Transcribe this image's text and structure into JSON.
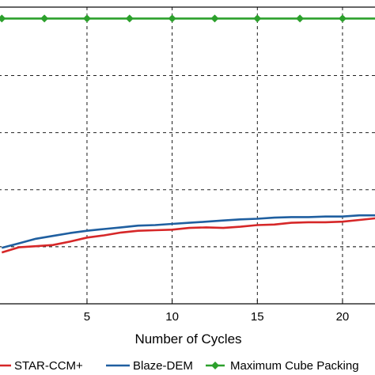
{
  "chart_data": {
    "type": "line",
    "xlabel": "Number of Cycles",
    "ylabel": "",
    "title": "",
    "xlim": [
      -0.2,
      22
    ],
    "ylim": [
      0.5,
      1.02
    ],
    "x_ticks": [
      5,
      10,
      15,
      20
    ],
    "grid": true,
    "legend_position": "bottom",
    "series": [
      {
        "name": "STAR-CCM+",
        "color": "#d62728",
        "marker": "none",
        "x": [
          0,
          1,
          2,
          3,
          4,
          5,
          6,
          7,
          8,
          9,
          10,
          11,
          12,
          13,
          14,
          15,
          16,
          17,
          18,
          19,
          20,
          21,
          22
        ],
        "y": [
          0.59,
          0.599,
          0.601,
          0.603,
          0.609,
          0.616,
          0.62,
          0.625,
          0.628,
          0.629,
          0.63,
          0.633,
          0.634,
          0.633,
          0.635,
          0.638,
          0.639,
          0.642,
          0.643,
          0.643,
          0.644,
          0.647,
          0.65
        ]
      },
      {
        "name": "Blaze-DEM",
        "color": "#1f5fa0",
        "marker": "none",
        "x": [
          0,
          1,
          2,
          3,
          4,
          5,
          6,
          7,
          8,
          9,
          10,
          11,
          12,
          13,
          14,
          15,
          16,
          17,
          18,
          19,
          20,
          21,
          22
        ],
        "y": [
          0.598,
          0.606,
          0.614,
          0.619,
          0.624,
          0.628,
          0.631,
          0.634,
          0.637,
          0.638,
          0.64,
          0.642,
          0.644,
          0.646,
          0.648,
          0.649,
          0.651,
          0.652,
          0.652,
          0.653,
          0.653,
          0.655,
          0.655
        ]
      },
      {
        "name": "Maximum Cube Packing",
        "color": "#2ca02c",
        "marker": "diamond",
        "x": [
          0,
          2.5,
          5,
          7.5,
          10,
          12.5,
          15,
          17.5,
          20,
          22
        ],
        "y": [
          1.0,
          1.0,
          1.0,
          1.0,
          1.0,
          1.0,
          1.0,
          1.0,
          1.0,
          1.0
        ]
      }
    ]
  }
}
